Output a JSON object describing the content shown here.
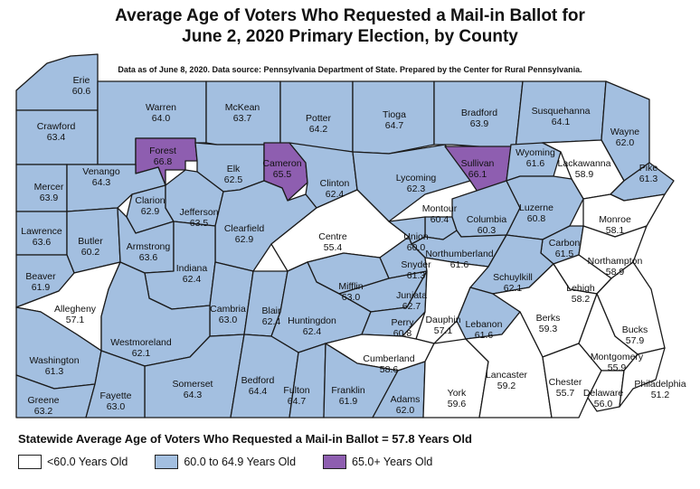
{
  "title_line1": "Average Age of Voters Who Requested a Mail-in Ballot for",
  "title_line2": "June 2, 2020 Primary Election, by County",
  "subtitle": "Data as of June 8, 2020. Data source: Pennsylvania Department of State. Prepared by the Center for Rural Pennsylvania.",
  "statewide": "Statewide Average Age of Voters Who Requested a Mail-in Ballot = 57.8 Years Old",
  "colors": {
    "low": "#ffffff",
    "mid": "#a3bfe0",
    "high": "#8e5eb0",
    "border": "#1a1a1a"
  },
  "legend": [
    {
      "label": "<60.0 Years Old",
      "class": "low"
    },
    {
      "label": "60.0 to 64.9 Years Old",
      "class": "mid"
    },
    {
      "label": "65.0+ Years Old",
      "class": "high"
    }
  ],
  "counties": [
    {
      "name": "Erie",
      "value": "60.6",
      "class": "mid"
    },
    {
      "name": "Crawford",
      "value": "63.4",
      "class": "mid"
    },
    {
      "name": "Warren",
      "value": "64.0",
      "class": "mid"
    },
    {
      "name": "McKean",
      "value": "63.7",
      "class": "mid"
    },
    {
      "name": "Potter",
      "value": "64.2",
      "class": "mid"
    },
    {
      "name": "Tioga",
      "value": "64.7",
      "class": "mid"
    },
    {
      "name": "Bradford",
      "value": "63.9",
      "class": "mid"
    },
    {
      "name": "Susquehanna",
      "value": "64.1",
      "class": "mid"
    },
    {
      "name": "Wayne",
      "value": "62.0",
      "class": "mid"
    },
    {
      "name": "Forest",
      "value": "66.8",
      "class": "high"
    },
    {
      "name": "Mercer",
      "value": "63.9",
      "class": "mid"
    },
    {
      "name": "Venango",
      "value": "64.3",
      "class": "mid"
    },
    {
      "name": "Elk",
      "value": "62.5",
      "class": "mid"
    },
    {
      "name": "Cameron",
      "value": "65.5",
      "class": "high"
    },
    {
      "name": "Clinton",
      "value": "62.4",
      "class": "mid"
    },
    {
      "name": "Lycoming",
      "value": "62.3",
      "class": "mid"
    },
    {
      "name": "Sullivan",
      "value": "66.1",
      "class": "high"
    },
    {
      "name": "Wyoming",
      "value": "61.6",
      "class": "mid"
    },
    {
      "name": "Lackawanna",
      "value": "58.9",
      "class": "low"
    },
    {
      "name": "Pike",
      "value": "61.3",
      "class": "mid"
    },
    {
      "name": "Lawrence",
      "value": "63.6",
      "class": "mid"
    },
    {
      "name": "Butler",
      "value": "60.2",
      "class": "mid"
    },
    {
      "name": "Clarion",
      "value": "62.9",
      "class": "mid"
    },
    {
      "name": "Jefferson",
      "value": "63.5",
      "class": "mid"
    },
    {
      "name": "Clearfield",
      "value": "62.9",
      "class": "mid"
    },
    {
      "name": "Centre",
      "value": "55.4",
      "class": "low"
    },
    {
      "name": "Montour",
      "value": "60.4",
      "class": "mid"
    },
    {
      "name": "Columbia",
      "value": "60.3",
      "class": "mid"
    },
    {
      "name": "Luzerne",
      "value": "60.8",
      "class": "mid"
    },
    {
      "name": "Monroe",
      "value": "58.1",
      "class": "low"
    },
    {
      "name": "Armstrong",
      "value": "63.6",
      "class": "mid"
    },
    {
      "name": "Union",
      "value": "60.0",
      "class": "mid"
    },
    {
      "name": "Northumberland",
      "value": "61.6",
      "class": "mid"
    },
    {
      "name": "Carbon",
      "value": "61.5",
      "class": "mid"
    },
    {
      "name": "Northampton",
      "value": "58.9",
      "class": "low"
    },
    {
      "name": "Beaver",
      "value": "61.9",
      "class": "mid"
    },
    {
      "name": "Indiana",
      "value": "62.4",
      "class": "mid"
    },
    {
      "name": "Snyder",
      "value": "61.3",
      "class": "mid"
    },
    {
      "name": "Schuylkill",
      "value": "62.1",
      "class": "mid"
    },
    {
      "name": "Lehigh",
      "value": "58.2",
      "class": "low"
    },
    {
      "name": "Allegheny",
      "value": "57.1",
      "class": "low"
    },
    {
      "name": "Cambria",
      "value": "63.0",
      "class": "mid"
    },
    {
      "name": "Blair",
      "value": "62.4",
      "class": "mid"
    },
    {
      "name": "Mifflin",
      "value": "63.0",
      "class": "mid"
    },
    {
      "name": "Juniata",
      "value": "62.7",
      "class": "mid"
    },
    {
      "name": "Huntingdon",
      "value": "62.4",
      "class": "mid"
    },
    {
      "name": "Perry",
      "value": "60.8",
      "class": "mid"
    },
    {
      "name": "Dauphin",
      "value": "57.1",
      "class": "low"
    },
    {
      "name": "Lebanon",
      "value": "61.6",
      "class": "mid"
    },
    {
      "name": "Berks",
      "value": "59.3",
      "class": "low"
    },
    {
      "name": "Bucks",
      "value": "57.9",
      "class": "low"
    },
    {
      "name": "Washington",
      "value": "61.3",
      "class": "mid"
    },
    {
      "name": "Westmoreland",
      "value": "62.1",
      "class": "mid"
    },
    {
      "name": "Cumberland",
      "value": "58.6",
      "class": "low"
    },
    {
      "name": "Montgomery",
      "value": "55.9",
      "class": "low"
    },
    {
      "name": "Somerset",
      "value": "64.3",
      "class": "mid"
    },
    {
      "name": "Bedford",
      "value": "64.4",
      "class": "mid"
    },
    {
      "name": "Fulton",
      "value": "64.7",
      "class": "mid"
    },
    {
      "name": "Franklin",
      "value": "61.9",
      "class": "mid"
    },
    {
      "name": "Adams",
      "value": "62.0",
      "class": "mid"
    },
    {
      "name": "York",
      "value": "59.6",
      "class": "low"
    },
    {
      "name": "Lancaster",
      "value": "59.2",
      "class": "low"
    },
    {
      "name": "Chester",
      "value": "55.7",
      "class": "low"
    },
    {
      "name": "Delaware",
      "value": "56.0",
      "class": "low"
    },
    {
      "name": "Philadelphia",
      "value": "51.2",
      "class": "low"
    },
    {
      "name": "Greene",
      "value": "63.2",
      "class": "mid"
    },
    {
      "name": "Fayette",
      "value": "63.0",
      "class": "mid"
    }
  ]
}
